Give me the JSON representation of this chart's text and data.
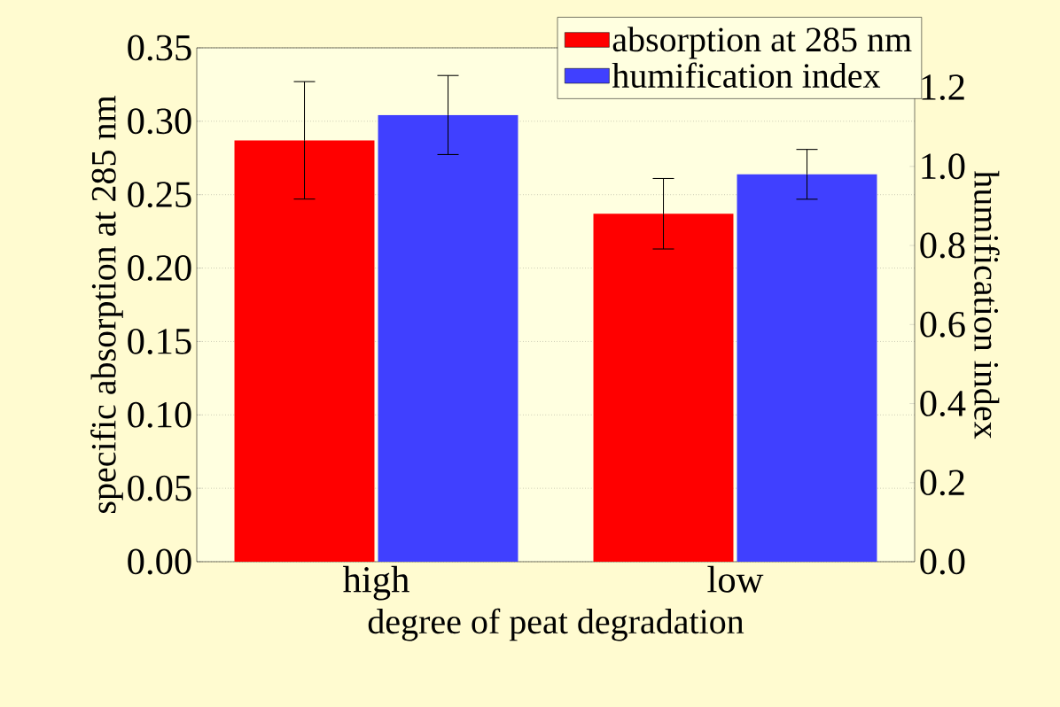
{
  "chart_data": {
    "type": "bar",
    "xlabel": "degree of peat degradation",
    "ylabel": "specific absorption at 285 nm",
    "y2label": "humification index",
    "categories": [
      "high",
      "low"
    ],
    "series": [
      {
        "name": "absorption at 285 nm",
        "color": "#ff0000",
        "values": [
          0.287,
          0.237
        ],
        "errors": [
          0.04,
          0.024
        ]
      },
      {
        "name": "humification index",
        "color": "#4040ff",
        "axis": "y2",
        "values": [
          1.13,
          0.98
        ],
        "errors": [
          0.1,
          0.063
        ]
      }
    ],
    "ylim": [
      0,
      0.35
    ],
    "yticks": [
      {
        "value": 0,
        "label": "0.00"
      },
      {
        "value": 0.05,
        "label": "0.05"
      },
      {
        "value": 0.1,
        "label": "0.10"
      },
      {
        "value": 0.15,
        "label": "0.15"
      },
      {
        "value": 0.2,
        "label": "0.20"
      },
      {
        "value": 0.25,
        "label": "0.25"
      },
      {
        "value": 0.3,
        "label": "0.30"
      },
      {
        "value": 0.35,
        "label": "0.35"
      }
    ],
    "y2lim": [
      0,
      1.3
    ],
    "y2ticks": [
      {
        "value": 0,
        "label": "0.0"
      },
      {
        "value": 0.2,
        "label": "0.2"
      },
      {
        "value": 0.4,
        "label": "0.4"
      },
      {
        "value": 0.6,
        "label": "0.6"
      },
      {
        "value": 0.8,
        "label": "0.8"
      },
      {
        "value": 1.0,
        "label": "1.0"
      },
      {
        "value": 1.2,
        "label": "1.2"
      }
    ],
    "grid": "y",
    "legend": "top right"
  }
}
